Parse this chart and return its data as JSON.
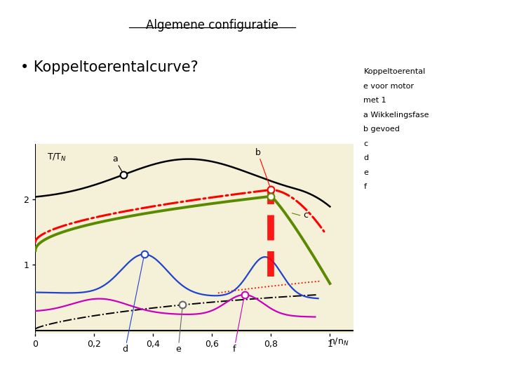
{
  "title": "Algemene configuratie",
  "bullet_text": "• Koppeltoerentalcurve?",
  "side_text_lines": [
    "Koppeltoerental",
    "e voor motor",
    "met 1",
    "a Wikkelingsfase",
    "b gevoed",
    "c",
    "d",
    "e",
    "f"
  ],
  "bg_color": "#f5f0d8",
  "fig_bg": "#ffffff",
  "xlim": [
    0,
    1.08
  ],
  "ylim": [
    -0.05,
    2.85
  ],
  "xticks": [
    0,
    0.2,
    0.4,
    0.6,
    0.8,
    1.0
  ],
  "xtick_labels": [
    "0",
    "0,2",
    "0,4",
    "0,6",
    "0,8",
    "1"
  ],
  "yticks": [
    1,
    2
  ],
  "ytick_labels": [
    "1",
    "2"
  ]
}
